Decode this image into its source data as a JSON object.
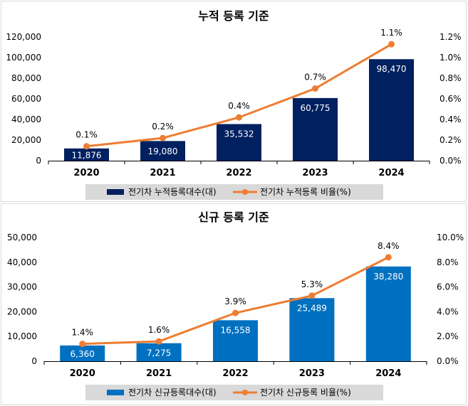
{
  "chart_data": [
    {
      "type": "bar",
      "title": "누적 등록 기준",
      "categories": [
        "2020",
        "2021",
        "2022",
        "2023",
        "2024"
      ],
      "series": [
        {
          "name": "전기차 누적등록대수(대)",
          "type": "bar",
          "axis": "left",
          "values": [
            11876,
            19080,
            35532,
            60775,
            98470
          ],
          "labels": [
            "11,876",
            "19,080",
            "35,532",
            "60,775",
            "98,470"
          ]
        },
        {
          "name": "전기차 누적등록 비율(%)",
          "type": "line",
          "axis": "right",
          "values": [
            0.14,
            0.22,
            0.42,
            0.7,
            1.13
          ],
          "labels": [
            "0.1%",
            "0.2%",
            "0.4%",
            "0.7%",
            "1.1%"
          ]
        }
      ],
      "ylim": [
        0,
        120000
      ],
      "y2lim": [
        0,
        1.2
      ],
      "yticks": [
        "0",
        "20,000",
        "40,000",
        "60,000",
        "80,000",
        "100,000",
        "120,000"
      ],
      "y2ticks": [
        "0.0%",
        "0.2%",
        "0.4%",
        "0.6%",
        "0.8%",
        "1.0%",
        "1.2%"
      ],
      "legend": "bottom",
      "grid": false,
      "colors": {
        "bar": "#002060",
        "line": "#ED7D31"
      }
    },
    {
      "type": "bar",
      "title": "신규 등록 기준",
      "categories": [
        "2020",
        "2021",
        "2022",
        "2023",
        "2024"
      ],
      "series": [
        {
          "name": "전기차 신규등록대수(대)",
          "type": "bar",
          "axis": "left",
          "values": [
            6360,
            7275,
            16558,
            25489,
            38280
          ],
          "labels": [
            "6,360",
            "7,275",
            "16,558",
            "25,489",
            "38,280"
          ]
        },
        {
          "name": "전기차 신규등록 비율(%)",
          "type": "line",
          "axis": "right",
          "values": [
            1.4,
            1.6,
            3.9,
            5.3,
            8.4
          ],
          "labels": [
            "1.4%",
            "1.6%",
            "3.9%",
            "5.3%",
            "8.4%"
          ]
        }
      ],
      "ylim": [
        0,
        50000
      ],
      "y2lim": [
        0,
        10
      ],
      "yticks": [
        "0",
        "10,000",
        "20,000",
        "30,000",
        "40,000",
        "50,000"
      ],
      "y2ticks": [
        "0.0%",
        "2.0%",
        "4.0%",
        "6.0%",
        "8.0%",
        "10.0%"
      ],
      "legend": "bottom",
      "grid": false,
      "colors": {
        "bar": "#0070C0",
        "line": "#ED7D31"
      }
    }
  ]
}
